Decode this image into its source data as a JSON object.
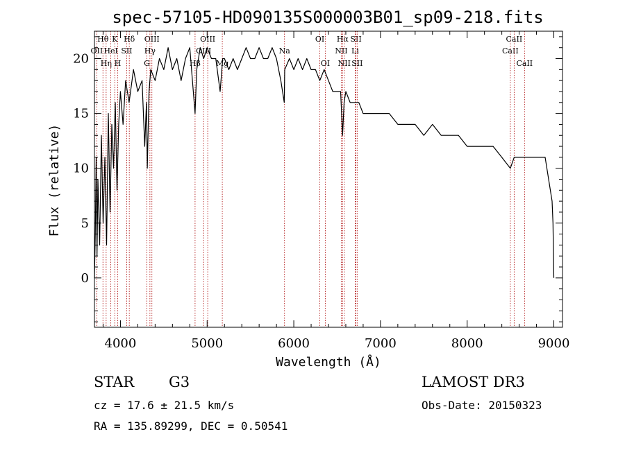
{
  "chart_data": {
    "type": "line",
    "title": "spec-57105-HD090135S000003B01_sp09-218.fits",
    "xlabel": "Wavelength (Å)",
    "ylabel": "Flux (relative)",
    "xlim": [
      3700,
      9100
    ],
    "ylim": [
      -4.5,
      22.5
    ],
    "xticks": [
      4000,
      5000,
      6000,
      7000,
      8000,
      9000
    ],
    "yticks": [
      0,
      5,
      10,
      15,
      20
    ],
    "series": [
      {
        "name": "flux",
        "x": [
          3700,
          3710,
          3720,
          3730,
          3740,
          3760,
          3780,
          3800,
          3820,
          3840,
          3860,
          3880,
          3900,
          3920,
          3940,
          3960,
          3980,
          4000,
          4030,
          4060,
          4100,
          4150,
          4200,
          4250,
          4280,
          4300,
          4310,
          4330,
          4350,
          4400,
          4450,
          4500,
          4550,
          4600,
          4650,
          4700,
          4750,
          4800,
          4861,
          4880,
          4920,
          4960,
          5000,
          5050,
          5100,
          5150,
          5180,
          5200,
          5250,
          5300,
          5350,
          5400,
          5450,
          5500,
          5550,
          5600,
          5650,
          5700,
          5750,
          5800,
          5850,
          5890,
          5895,
          5950,
          6000,
          6050,
          6100,
          6150,
          6200,
          6250,
          6300,
          6350,
          6400,
          6450,
          6500,
          6540,
          6563,
          6580,
          6600,
          6650,
          6700,
          6750,
          6800,
          6900,
          7000,
          7100,
          7200,
          7300,
          7400,
          7500,
          7600,
          7700,
          7800,
          7900,
          8000,
          8100,
          8200,
          8300,
          8400,
          8498,
          8542,
          8600,
          8662,
          8700,
          8750,
          8800,
          8850,
          8900,
          8920,
          8940,
          8960,
          8980,
          8990,
          9000
        ],
        "y": [
          0,
          4,
          11,
          2,
          9,
          3,
          13,
          5,
          11,
          3,
          15,
          6,
          14,
          10,
          16,
          8,
          14,
          17,
          14,
          18,
          16,
          19,
          17,
          18,
          12,
          16,
          10,
          17,
          19,
          18,
          20,
          19,
          21,
          19,
          20,
          18,
          20,
          21,
          15,
          19,
          21,
          20,
          21,
          20,
          20,
          17,
          20,
          20,
          19,
          20,
          19,
          20,
          21,
          20,
          20,
          21,
          20,
          20,
          21,
          20,
          18,
          16,
          19,
          20,
          19,
          20,
          19,
          20,
          19,
          19,
          18,
          19,
          18,
          17,
          17,
          17,
          13,
          16,
          17,
          16,
          16,
          16,
          15,
          15,
          15,
          15,
          14,
          14,
          14,
          13,
          14,
          13,
          13,
          13,
          12,
          12,
          12,
          12,
          11,
          10,
          11,
          11,
          11,
          11,
          11,
          11,
          11,
          11,
          10,
          9,
          8,
          7,
          5,
          0
        ]
      }
    ],
    "spectral_lines": [
      {
        "label": "Hθ",
        "x": 3798,
        "row": 1
      },
      {
        "label": "OII",
        "x": 3727,
        "row": 2
      },
      {
        "label": "Hη",
        "x": 3835,
        "row": 3
      },
      {
        "label": "HeI",
        "x": 3889,
        "row": 2
      },
      {
        "label": "K",
        "x": 3934,
        "row": 1
      },
      {
        "label": "H",
        "x": 3968,
        "row": 3
      },
      {
        "label": "SII",
        "x": 4072,
        "row": 2
      },
      {
        "label": "Hδ",
        "x": 4102,
        "row": 1
      },
      {
        "label": "OIII",
        "x": 4363,
        "row": 1
      },
      {
        "label": "Hγ",
        "x": 4340,
        "row": 2
      },
      {
        "label": "G",
        "x": 4305,
        "row": 3
      },
      {
        "label": "Hβ",
        "x": 4861,
        "row": 3
      },
      {
        "label": "OIII",
        "x": 4959,
        "row": 2
      },
      {
        "label": "OIII",
        "x": 5007,
        "row": 1
      },
      {
        "label": "Mg",
        "x": 5175,
        "row": 3
      },
      {
        "label": "Na",
        "x": 5893,
        "row": 2
      },
      {
        "label": "OI",
        "x": 6300,
        "row": 1
      },
      {
        "label": "OI",
        "x": 6363,
        "row": 3
      },
      {
        "label": "NII",
        "x": 6548,
        "row": 2
      },
      {
        "label": "Hα",
        "x": 6563,
        "row": 1
      },
      {
        "label": "NII",
        "x": 6583,
        "row": 3
      },
      {
        "label": "Li",
        "x": 6708,
        "row": 2
      },
      {
        "label": "SII",
        "x": 6717,
        "row": 1
      },
      {
        "label": "SII",
        "x": 6731,
        "row": 3
      },
      {
        "label": "CaII",
        "x": 8498,
        "row": 2
      },
      {
        "label": "CaII",
        "x": 8542,
        "row": 1
      },
      {
        "label": "CaII",
        "x": 8662,
        "row": 3
      }
    ]
  },
  "info": {
    "class_label": "STAR",
    "subclass": "G3",
    "survey": "LAMOST DR3",
    "cz": "cz = 17.6 ± 21.5 km/s",
    "obs_date": "Obs-Date: 20150323",
    "radec": "RA = 135.89299, DEC =    0.50541"
  },
  "colors": {
    "line_marker": "#aa0000",
    "flux": "#000000"
  }
}
